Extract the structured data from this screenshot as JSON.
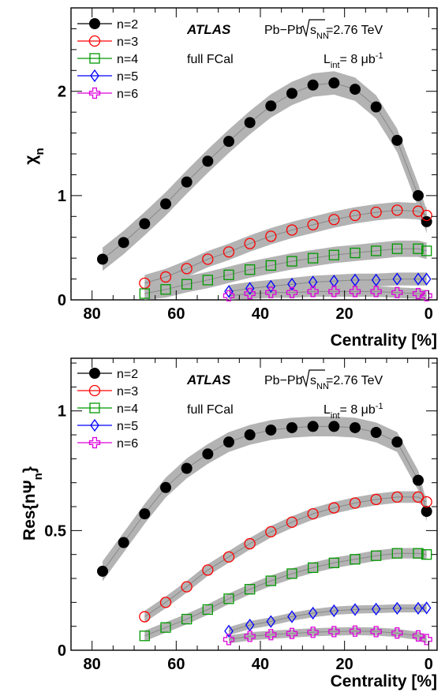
{
  "chart_data": [
    {
      "type": "scatter",
      "xlabel": "Centrality [%]",
      "ylabel": "χ",
      "ylabel_sub": "n",
      "xlim": [
        85,
        -2
      ],
      "ylim": [
        0,
        2.8
      ],
      "xticks": [
        80,
        60,
        40,
        20,
        0
      ],
      "yticks": [
        0,
        1,
        2
      ],
      "annotations": {
        "atlas": "ATLAS",
        "system": "Pb−Pb",
        "sqrt": "s",
        "sqrt_sub": "NN",
        "energy": "=2.76 TeV",
        "detector": "full FCal",
        "lumi_pre": "L",
        "lumi_sub": "int",
        "lumi_mid": "= 8 μb",
        "lumi_sup": "-1"
      },
      "series": [
        {
          "name": "n=2",
          "marker": "filled-circle",
          "color": "#000000",
          "x": [
            77.5,
            72.5,
            67.5,
            62.5,
            57.5,
            52.5,
            47.5,
            42.5,
            37.5,
            32.5,
            27.5,
            22.5,
            17.5,
            12.5,
            7.5,
            2.5,
            0.5
          ],
          "y": [
            0.39,
            0.55,
            0.73,
            0.92,
            1.13,
            1.33,
            1.52,
            1.7,
            1.86,
            1.98,
            2.06,
            2.08,
            2.02,
            1.85,
            1.53,
            1.0,
            0.75
          ]
        },
        {
          "name": "n=3",
          "marker": "open-circle",
          "color": "#ff0000",
          "x": [
            67.5,
            62.5,
            57.5,
            52.5,
            47.5,
            42.5,
            37.5,
            32.5,
            27.5,
            22.5,
            17.5,
            12.5,
            7.5,
            2.5,
            0.5
          ],
          "y": [
            0.16,
            0.22,
            0.3,
            0.39,
            0.46,
            0.54,
            0.61,
            0.67,
            0.72,
            0.77,
            0.81,
            0.84,
            0.86,
            0.85,
            0.81
          ]
        },
        {
          "name": "n=4",
          "marker": "open-square",
          "color": "#009900",
          "x": [
            67.5,
            62.5,
            57.5,
            52.5,
            47.5,
            42.5,
            37.5,
            32.5,
            27.5,
            22.5,
            17.5,
            12.5,
            7.5,
            2.5,
            0.5
          ],
          "y": [
            0.06,
            0.1,
            0.15,
            0.19,
            0.24,
            0.29,
            0.33,
            0.37,
            0.4,
            0.43,
            0.45,
            0.47,
            0.49,
            0.49,
            0.47
          ]
        },
        {
          "name": "n=5",
          "marker": "open-diamond",
          "color": "#0000ff",
          "x": [
            47.5,
            42.5,
            37.5,
            32.5,
            27.5,
            22.5,
            17.5,
            12.5,
            7.5,
            2.5,
            0.5
          ],
          "y": [
            0.08,
            0.11,
            0.13,
            0.15,
            0.17,
            0.18,
            0.19,
            0.19,
            0.2,
            0.2,
            0.2
          ]
        },
        {
          "name": "n=6",
          "marker": "open-cross",
          "color": "#dd00dd",
          "x": [
            47.5,
            42.5,
            37.5,
            32.5,
            27.5,
            22.5,
            17.5,
            12.5,
            7.5,
            2.5,
            0.5
          ],
          "y": [
            0.04,
            0.06,
            0.07,
            0.07,
            0.08,
            0.08,
            0.08,
            0.08,
            0.07,
            0.06,
            0.04
          ]
        }
      ]
    },
    {
      "type": "scatter",
      "xlabel": "Centrality [%]",
      "ylabel": "Res{nΨ",
      "ylabel_sub": "n",
      "ylabel_end": "}",
      "xlim": [
        85,
        -2
      ],
      "ylim": [
        0,
        1.22
      ],
      "xticks": [
        80,
        60,
        40,
        20,
        0
      ],
      "yticks": [
        0,
        0.5,
        1
      ],
      "yticklabels": [
        "0",
        "0.5",
        "1"
      ],
      "annotations": {
        "atlas": "ATLAS",
        "system": "Pb−Pb",
        "sqrt": "s",
        "sqrt_sub": "NN",
        "energy": "=2.76 TeV",
        "detector": "full FCal",
        "lumi_pre": "L",
        "lumi_sub": "int",
        "lumi_mid": "= 8 μb",
        "lumi_sup": "-1"
      },
      "series": [
        {
          "name": "n=2",
          "marker": "filled-circle",
          "color": "#000000",
          "x": [
            77.5,
            72.5,
            67.5,
            62.5,
            57.5,
            52.5,
            47.5,
            42.5,
            37.5,
            32.5,
            27.5,
            22.5,
            17.5,
            12.5,
            7.5,
            2.5,
            0.5
          ],
          "y": [
            0.33,
            0.45,
            0.57,
            0.68,
            0.76,
            0.82,
            0.87,
            0.9,
            0.92,
            0.93,
            0.935,
            0.935,
            0.93,
            0.91,
            0.87,
            0.71,
            0.58
          ]
        },
        {
          "name": "n=3",
          "marker": "open-circle",
          "color": "#ff0000",
          "x": [
            67.5,
            62.5,
            57.5,
            52.5,
            47.5,
            42.5,
            37.5,
            32.5,
            27.5,
            22.5,
            17.5,
            12.5,
            7.5,
            2.5,
            0.5
          ],
          "y": [
            0.14,
            0.2,
            0.265,
            0.335,
            0.39,
            0.445,
            0.495,
            0.535,
            0.57,
            0.595,
            0.615,
            0.63,
            0.64,
            0.64,
            0.62
          ]
        },
        {
          "name": "n=4",
          "marker": "open-square",
          "color": "#009900",
          "x": [
            67.5,
            62.5,
            57.5,
            52.5,
            47.5,
            42.5,
            37.5,
            32.5,
            27.5,
            22.5,
            17.5,
            12.5,
            7.5,
            2.5,
            0.5
          ],
          "y": [
            0.06,
            0.095,
            0.13,
            0.17,
            0.215,
            0.255,
            0.29,
            0.32,
            0.345,
            0.365,
            0.38,
            0.395,
            0.405,
            0.405,
            0.4
          ]
        },
        {
          "name": "n=5",
          "marker": "open-diamond",
          "color": "#0000ff",
          "x": [
            47.5,
            42.5,
            37.5,
            32.5,
            27.5,
            22.5,
            17.5,
            12.5,
            7.5,
            2.5,
            0.5
          ],
          "y": [
            0.08,
            0.105,
            0.12,
            0.14,
            0.155,
            0.165,
            0.17,
            0.172,
            0.175,
            0.175,
            0.177
          ]
        },
        {
          "name": "n=6",
          "marker": "open-cross",
          "color": "#dd00dd",
          "x": [
            47.5,
            42.5,
            37.5,
            32.5,
            27.5,
            22.5,
            17.5,
            12.5,
            7.5,
            2.5,
            0.5
          ],
          "y": [
            0.045,
            0.058,
            0.065,
            0.07,
            0.075,
            0.078,
            0.08,
            0.078,
            0.072,
            0.06,
            0.045
          ]
        }
      ]
    }
  ]
}
